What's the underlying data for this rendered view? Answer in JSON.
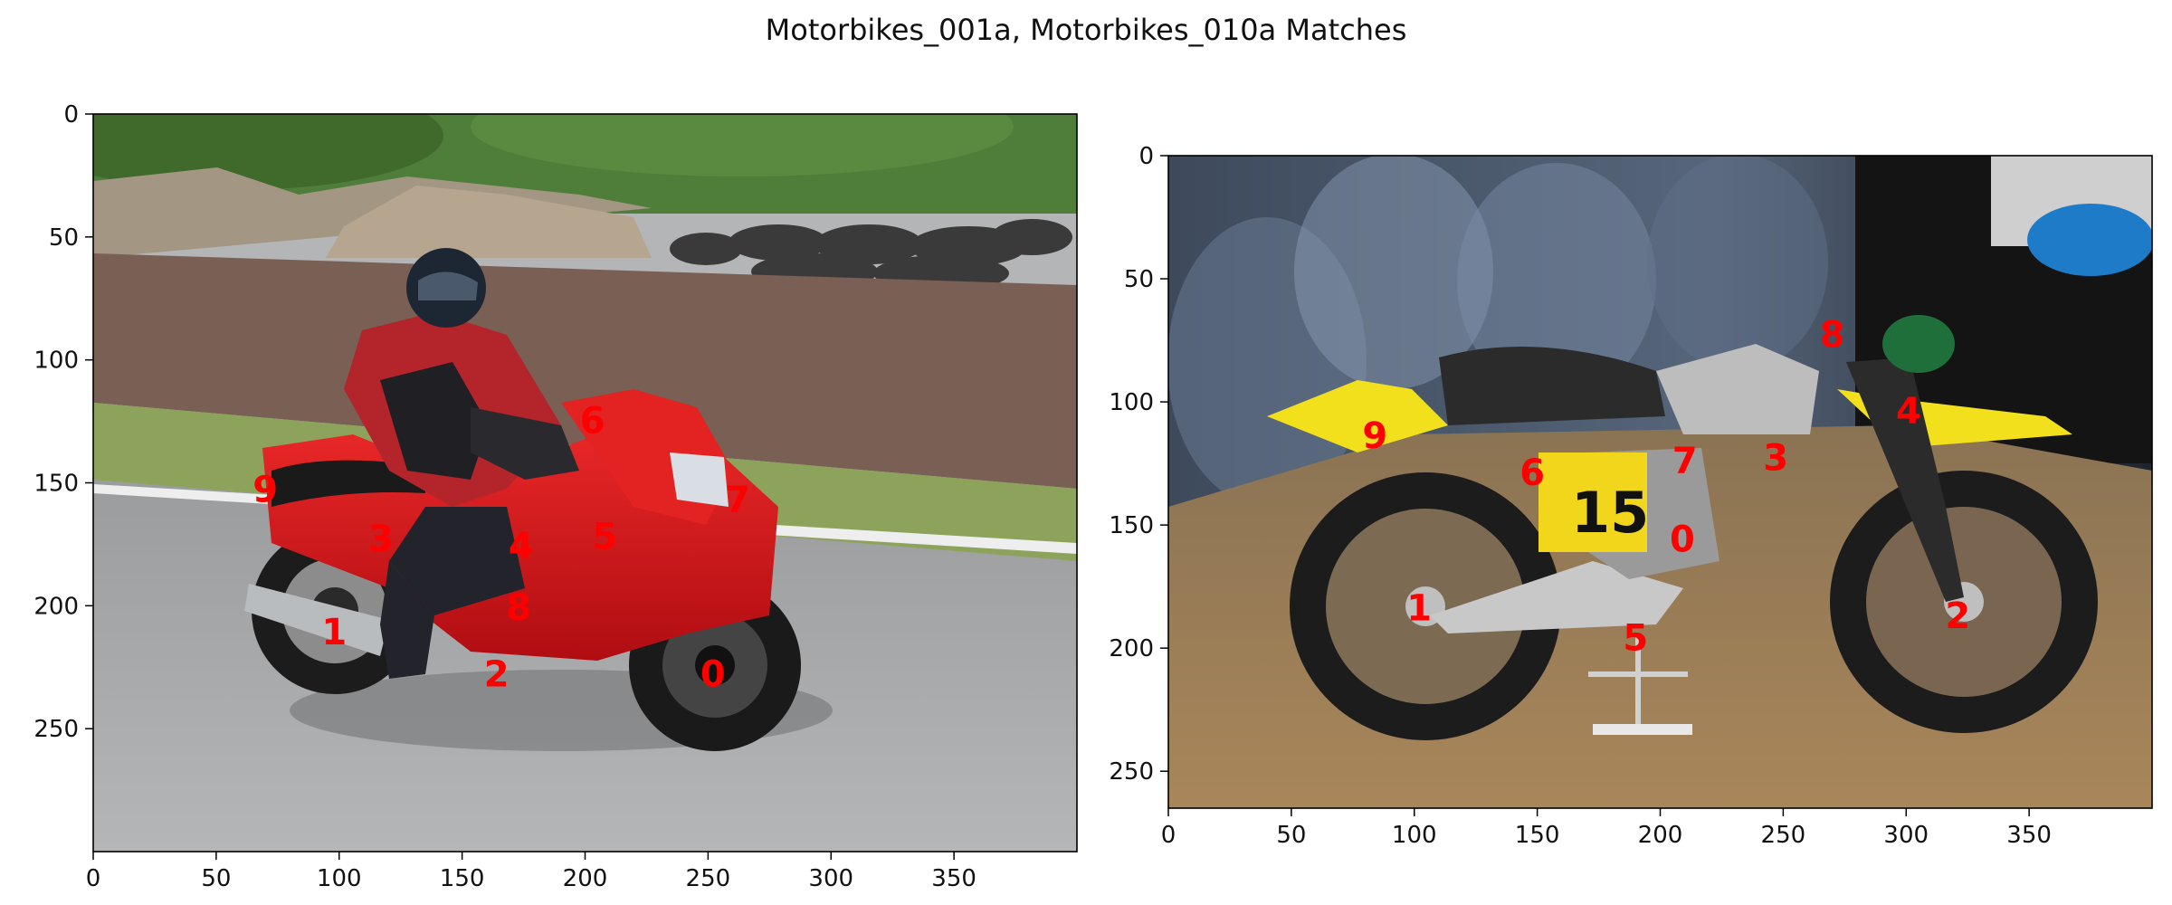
{
  "title": "Motorbikes_001a, Motorbikes_010a Matches",
  "colors": {
    "keypoint_label": "#ff0000",
    "axes": "#000000",
    "background": "#ffffff"
  },
  "chart_data": [
    {
      "type": "scatter",
      "subtype": "image-keypoints",
      "image": "Motorbikes_001a",
      "image_description": "red sport motorcycle with rider in red/black suit on a race track",
      "xlim": [
        0,
        400
      ],
      "ylim": [
        300,
        0
      ],
      "xticks": [
        0,
        50,
        100,
        150,
        200,
        250,
        300,
        350
      ],
      "yticks": [
        0,
        50,
        100,
        150,
        200,
        250
      ],
      "points": [
        {
          "label": "0",
          "x": 252,
          "y": 228
        },
        {
          "label": "1",
          "x": 98,
          "y": 211
        },
        {
          "label": "2",
          "x": 164,
          "y": 228
        },
        {
          "label": "3",
          "x": 117,
          "y": 173
        },
        {
          "label": "4",
          "x": 174,
          "y": 176
        },
        {
          "label": "5",
          "x": 208,
          "y": 172
        },
        {
          "label": "6",
          "x": 203,
          "y": 125
        },
        {
          "label": "7",
          "x": 262,
          "y": 157
        },
        {
          "label": "8",
          "x": 173,
          "y": 201
        },
        {
          "label": "9",
          "x": 70,
          "y": 153
        }
      ]
    },
    {
      "type": "scatter",
      "subtype": "image-keypoints",
      "image": "Motorbikes_010a",
      "image_description": "vintage yellow and chrome motocross dirt bike number 15 on display",
      "xlim": [
        0,
        400
      ],
      "ylim": [
        265,
        0
      ],
      "xticks": [
        0,
        50,
        100,
        150,
        200,
        250,
        300,
        350
      ],
      "yticks": [
        0,
        50,
        100,
        150,
        200,
        250
      ],
      "points": [
        {
          "label": "0",
          "x": 209,
          "y": 156
        },
        {
          "label": "1",
          "x": 102,
          "y": 184
        },
        {
          "label": "2",
          "x": 321,
          "y": 187
        },
        {
          "label": "3",
          "x": 247,
          "y": 123
        },
        {
          "label": "4",
          "x": 301,
          "y": 104
        },
        {
          "label": "5",
          "x": 190,
          "y": 196
        },
        {
          "label": "6",
          "x": 148,
          "y": 129
        },
        {
          "label": "7",
          "x": 210,
          "y": 124
        },
        {
          "label": "8",
          "x": 270,
          "y": 73
        },
        {
          "label": "9",
          "x": 84,
          "y": 114
        }
      ]
    }
  ]
}
